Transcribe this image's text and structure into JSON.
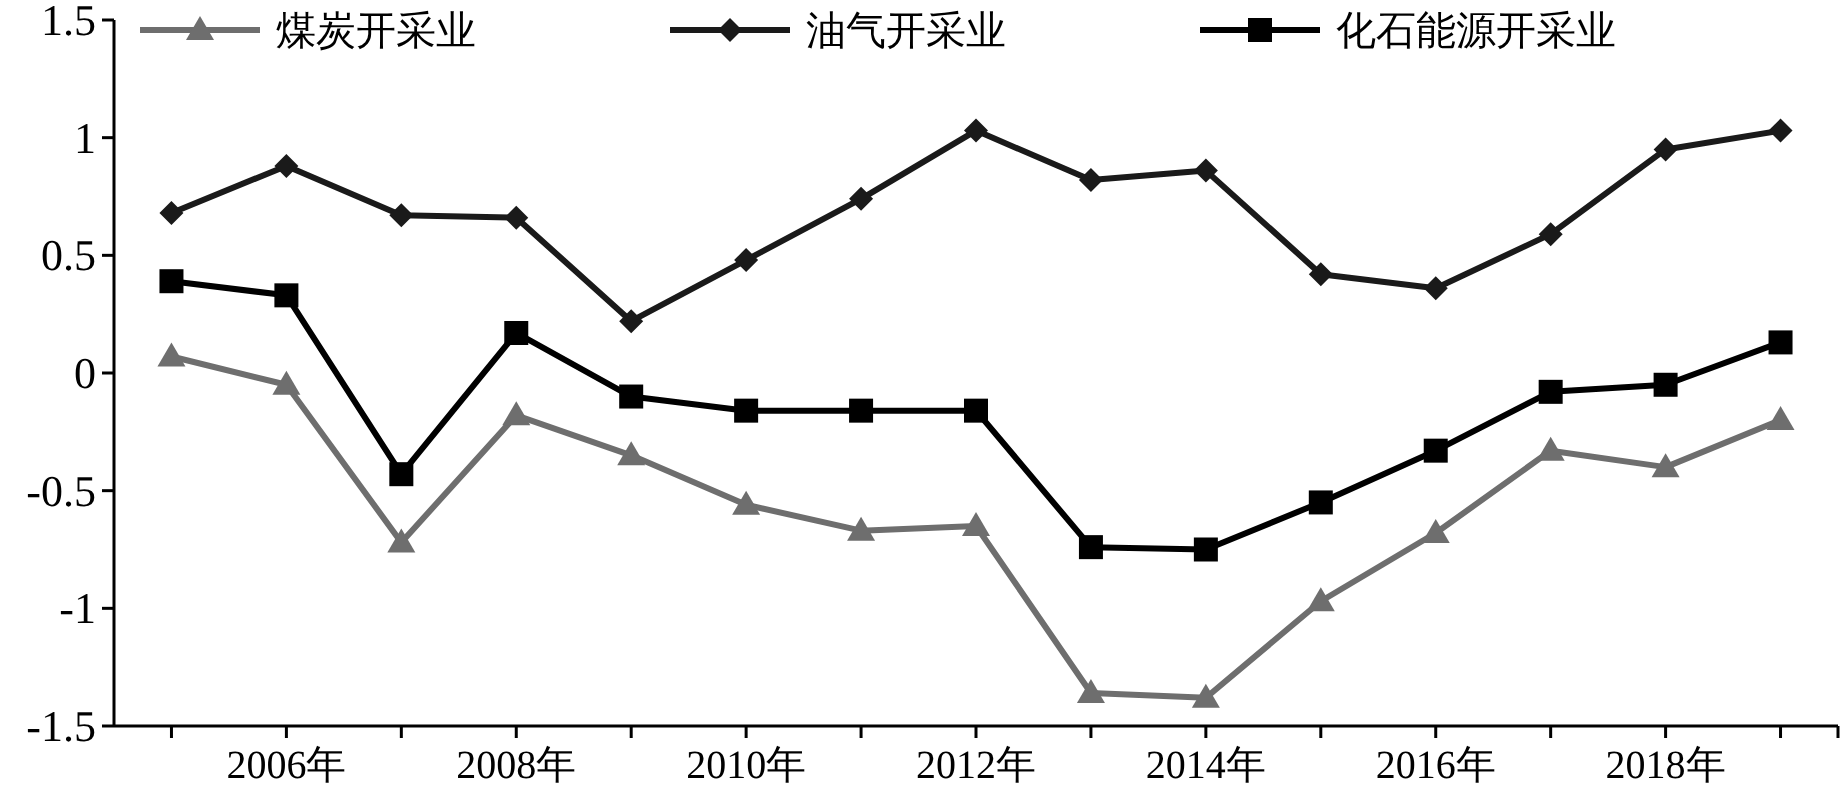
{
  "chart_data": {
    "type": "line",
    "categories": [
      null,
      "2006年",
      null,
      "2008年",
      null,
      "2010年",
      null,
      "2012年",
      null,
      "2014年",
      null,
      "2016年",
      null,
      "2018年",
      null
    ],
    "series": [
      {
        "name": "煤炭开采业",
        "color": "#6e6e6e",
        "marker": "triangle",
        "values": [
          0.07,
          -0.05,
          -0.72,
          -0.18,
          -0.35,
          -0.56,
          -0.67,
          -0.65,
          -1.36,
          -1.38,
          -0.97,
          -0.68,
          -0.33,
          -0.4,
          -0.2
        ]
      },
      {
        "name": "油气开采业",
        "color": "#1a1a1a",
        "marker": "diamond",
        "values": [
          0.68,
          0.88,
          0.67,
          0.66,
          0.22,
          0.48,
          0.74,
          1.03,
          0.82,
          0.86,
          0.42,
          0.36,
          0.59,
          0.95,
          1.03
        ]
      },
      {
        "name": "化石能源开采业",
        "color": "#000000",
        "marker": "square",
        "values": [
          0.39,
          0.33,
          -0.43,
          0.17,
          -0.1,
          -0.16,
          -0.16,
          -0.16,
          -0.74,
          -0.75,
          -0.55,
          -0.33,
          -0.08,
          -0.05,
          0.13
        ]
      }
    ],
    "ylim": [
      -1.5,
      1.5
    ],
    "yticks": [
      1.5,
      1,
      0.5,
      0,
      -0.5,
      -1,
      -1.5
    ],
    "grid": false,
    "legend": "top",
    "line_style": "solid"
  }
}
